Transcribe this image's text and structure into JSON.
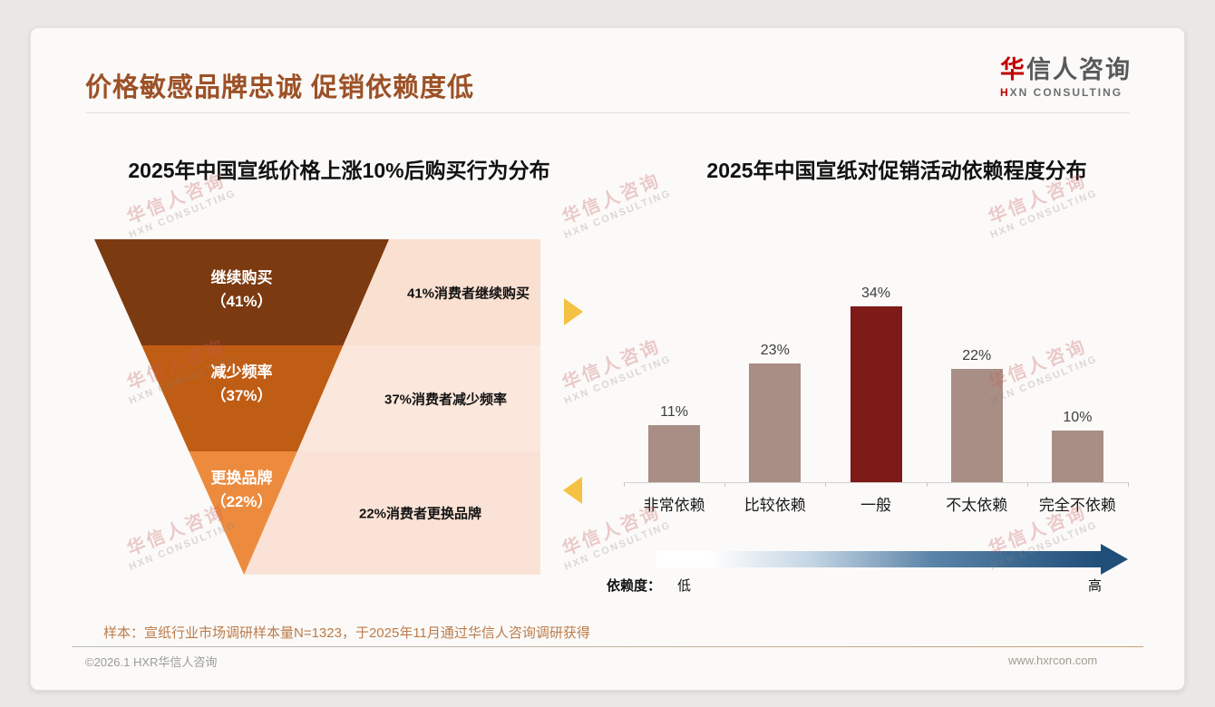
{
  "page": {
    "title": "价格敏感品牌忠诚 促销依赖度低",
    "logo": {
      "zh_first": "华",
      "zh_rest": "信人咨询",
      "en_first": "H",
      "en_rest": "XN CONSULTING"
    },
    "watermark": {
      "line1": "华信人咨询",
      "line2": "HXN CONSULTING"
    },
    "footer": {
      "note": "样本：宣纸行业市场调研样本量N=1323，于2025年11月通过华信人咨询调研获得",
      "copyright": "©2026.1 HXR华信人咨询",
      "website": "www.hxrcon.com"
    }
  },
  "colors": {
    "title_brown": "#9C5127",
    "logo_red": "#C00000",
    "connector_yellow": "#F5C142",
    "gradient_navy": "#1F4E79",
    "card_background": "#FBFAF8",
    "page_background": "#E9E8E6"
  },
  "chart_data": [
    {
      "type": "funnel",
      "title": "2025年中国宣纸价格上涨10%后购买行为分布",
      "stages": [
        {
          "label": "继续购买",
          "value": 41,
          "value_label": "（41%）",
          "annotation": "41%消费者继续购买",
          "color": "#7C3A11",
          "panel_color": "#FAE0D0"
        },
        {
          "label": "减少频率",
          "value": 37,
          "value_label": "（37%）",
          "annotation": "37%消费者减少频率",
          "color": "#C05D14",
          "panel_color": "#FBE7DB"
        },
        {
          "label": "更换品牌",
          "value": 22,
          "value_label": "（22%）",
          "annotation": "22%消费者更换品牌",
          "color": "#EC8B3E",
          "panel_color": "#FAE3D6"
        }
      ]
    },
    {
      "type": "bar",
      "title": "2025年中国宣纸对促销活动依赖程度分布",
      "categories": [
        "非常依赖",
        "比较依赖",
        "一般",
        "不太依赖",
        "完全不依赖"
      ],
      "values": [
        11,
        23,
        34,
        22,
        10
      ],
      "unit": "%",
      "highlight_index": 2,
      "bar_color": "#A98E85",
      "highlight_color": "#7E1A17",
      "ylim": [
        0,
        40
      ],
      "grid": false,
      "legend": {
        "axis_label": "依赖度：",
        "low": "低",
        "high": "高"
      }
    }
  ]
}
